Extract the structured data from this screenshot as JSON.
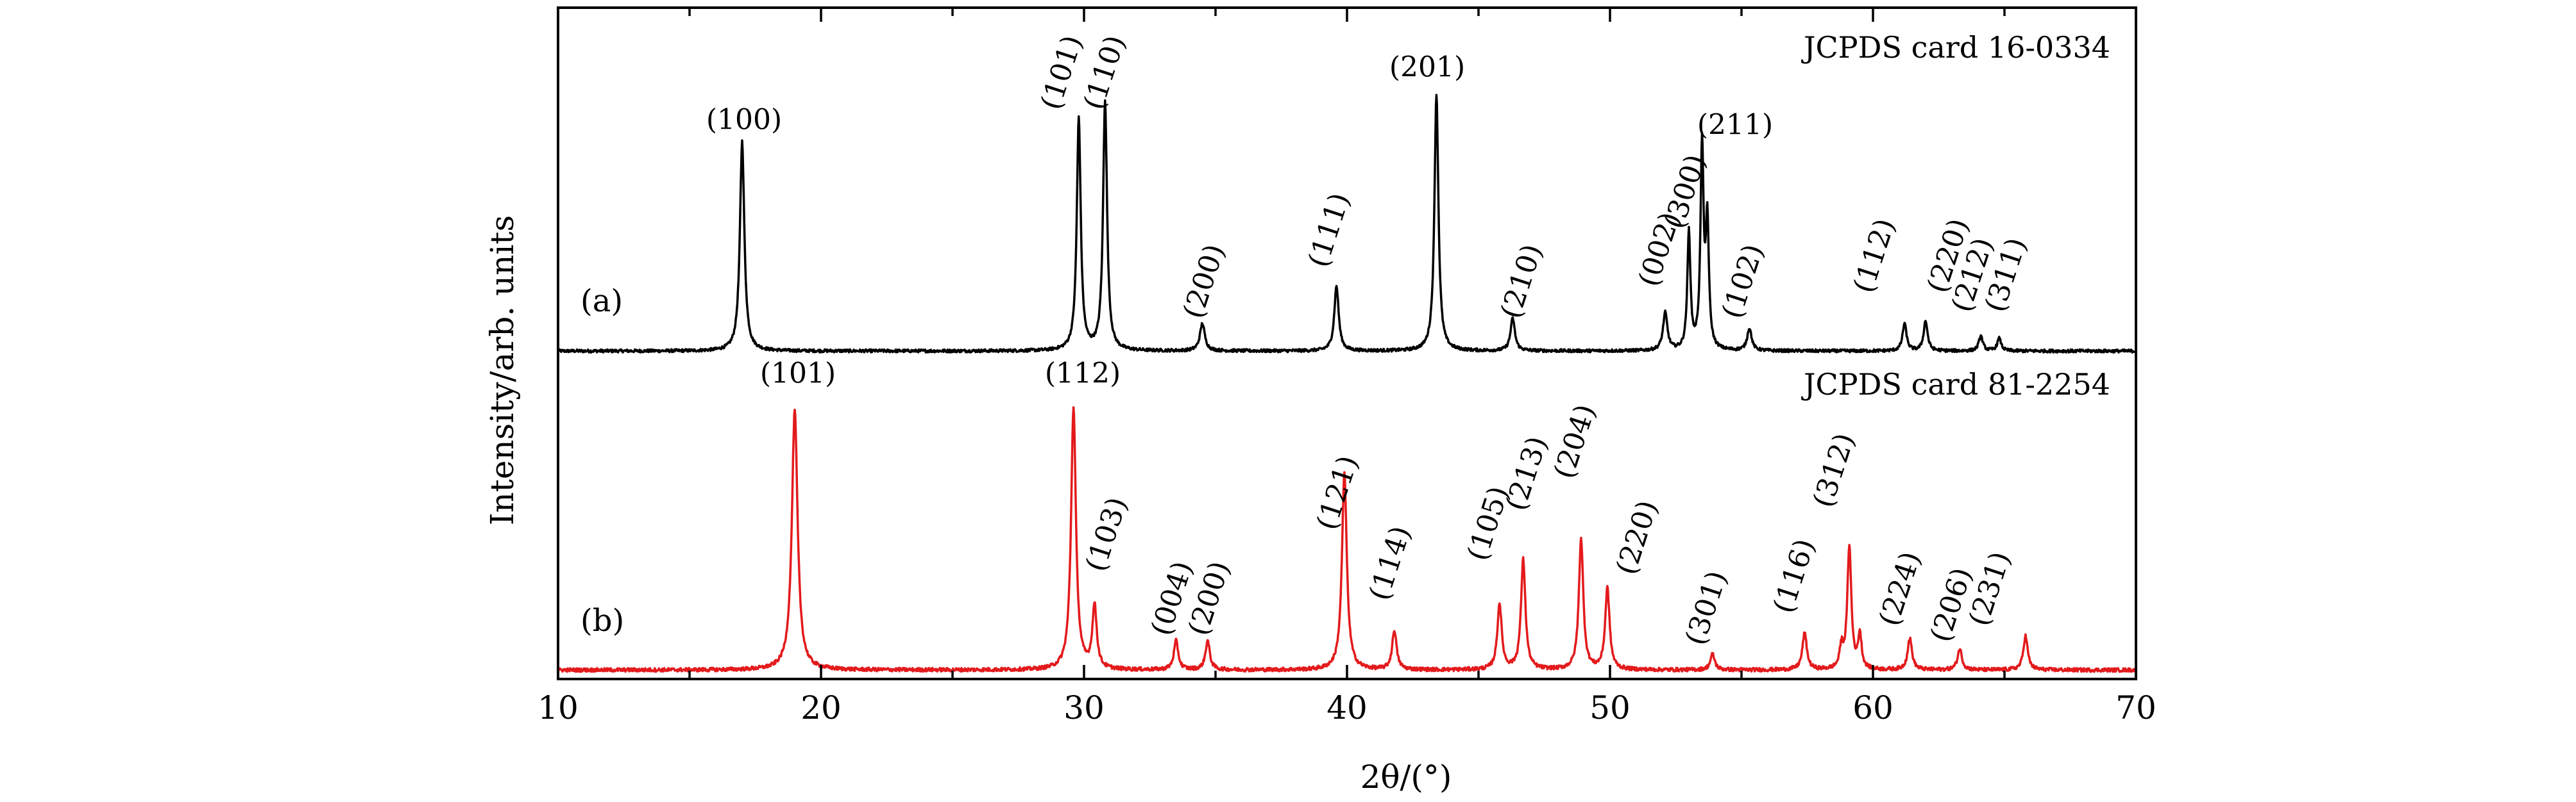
{
  "chart_data": {
    "type": "line",
    "xlabel": "2θ/(°)",
    "ylabel": "Intensity/arb. units",
    "xlim": [
      10,
      70
    ],
    "xticks": [
      10,
      20,
      30,
      40,
      50,
      60,
      70
    ],
    "xtick_labels": [
      "10",
      "20",
      "30",
      "40",
      "50",
      "60",
      "70"
    ],
    "yticks_shown": false,
    "grid": false,
    "panels": [
      {
        "id": "a",
        "label": "(a)",
        "card": "JCPDS card 16-0334",
        "color": "#000000",
        "baseline_noise": 0.012,
        "peaks": [
          {
            "x": 17.0,
            "intensity": 0.84,
            "width": 0.1,
            "hkl": "(100)",
            "rot": 0
          },
          {
            "x": 29.8,
            "intensity": 0.93,
            "width": 0.09,
            "hkl": "(101)",
            "rot": -72
          },
          {
            "x": 30.8,
            "intensity": 1.0,
            "width": 0.09,
            "hkl": "(110)",
            "rot": -72
          },
          {
            "x": 34.5,
            "intensity": 0.11,
            "width": 0.11,
            "hkl": "(200)",
            "rot": -72
          },
          {
            "x": 39.6,
            "intensity": 0.26,
            "width": 0.1,
            "hkl": "(111)",
            "rot": -72
          },
          {
            "x": 43.4,
            "intensity": 1.03,
            "width": 0.09,
            "hkl": "(201)",
            "rot": 0
          },
          {
            "x": 46.3,
            "intensity": 0.13,
            "width": 0.1,
            "hkl": "(210)",
            "rot": -72
          },
          {
            "x": 52.1,
            "intensity": 0.15,
            "width": 0.1,
            "hkl": "(002)",
            "rot": -72
          },
          {
            "x": 53.0,
            "intensity": 0.47,
            "width": 0.07,
            "hkl": "(300)",
            "rot": -72
          },
          {
            "x": 53.5,
            "intensity": 0.81,
            "width": 0.07,
            "hkl": "(211)",
            "rot": 0
          },
          {
            "x": 53.7,
            "intensity": 0.5,
            "width": 0.07,
            "hkl": "",
            "rot": 0
          },
          {
            "x": 55.3,
            "intensity": 0.09,
            "width": 0.1,
            "hkl": "(102)",
            "rot": -72
          },
          {
            "x": 61.2,
            "intensity": 0.11,
            "width": 0.09,
            "hkl": "(112)",
            "rot": -72
          },
          {
            "x": 62.0,
            "intensity": 0.12,
            "width": 0.09,
            "hkl": "(220)",
            "rot": -72
          },
          {
            "x": 64.1,
            "intensity": 0.06,
            "width": 0.09,
            "hkl": "(212)",
            "rot": -72
          },
          {
            "x": 64.8,
            "intensity": 0.05,
            "width": 0.09,
            "hkl": "(311)",
            "rot": -72
          }
        ]
      },
      {
        "id": "b",
        "label": "(b)",
        "card": "JCPDS card 81-2254",
        "color": "#e31a1c",
        "baseline_noise": 0.014,
        "peaks": [
          {
            "x": 19.0,
            "intensity": 0.99,
            "width": 0.13,
            "hkl": "(101)",
            "rot": 0
          },
          {
            "x": 29.6,
            "intensity": 1.0,
            "width": 0.11,
            "hkl": "(112)",
            "rot": 0
          },
          {
            "x": 30.4,
            "intensity": 0.24,
            "width": 0.1,
            "hkl": "(103)",
            "rot": -72
          },
          {
            "x": 33.5,
            "intensity": 0.11,
            "width": 0.1,
            "hkl": "(004)",
            "rot": -72
          },
          {
            "x": 34.7,
            "intensity": 0.11,
            "width": 0.1,
            "hkl": "(200)",
            "rot": -72
          },
          {
            "x": 39.9,
            "intensity": 0.75,
            "width": 0.11,
            "hkl": "(121)",
            "rot": -72
          },
          {
            "x": 41.8,
            "intensity": 0.15,
            "width": 0.1,
            "hkl": "(114)",
            "rot": -72
          },
          {
            "x": 45.8,
            "intensity": 0.25,
            "width": 0.1,
            "hkl": "(105)",
            "rot": -72
          },
          {
            "x": 46.7,
            "intensity": 0.42,
            "width": 0.1,
            "hkl": "(213)",
            "rot": -72
          },
          {
            "x": 48.9,
            "intensity": 0.5,
            "width": 0.1,
            "hkl": "(204)",
            "rot": -72
          },
          {
            "x": 49.9,
            "intensity": 0.31,
            "width": 0.1,
            "hkl": "(220)",
            "rot": -72
          },
          {
            "x": 53.9,
            "intensity": 0.06,
            "width": 0.1,
            "hkl": "(301)",
            "rot": -72
          },
          {
            "x": 57.4,
            "intensity": 0.14,
            "width": 0.1,
            "hkl": "(116)",
            "rot": -72
          },
          {
            "x": 58.8,
            "intensity": 0.08,
            "width": 0.08,
            "hkl": "",
            "rot": 0
          },
          {
            "x": 59.1,
            "intensity": 0.47,
            "width": 0.09,
            "hkl": "(312)",
            "rot": -72
          },
          {
            "x": 59.5,
            "intensity": 0.13,
            "width": 0.08,
            "hkl": "",
            "rot": 0
          },
          {
            "x": 61.4,
            "intensity": 0.12,
            "width": 0.1,
            "hkl": "(224)",
            "rot": -72
          },
          {
            "x": 63.3,
            "intensity": 0.08,
            "width": 0.1,
            "hkl": "(206)",
            "rot": -72
          },
          {
            "x": 65.8,
            "intensity": 0.13,
            "width": 0.1,
            "hkl": "(231)",
            "rot": -72
          }
        ]
      }
    ]
  }
}
